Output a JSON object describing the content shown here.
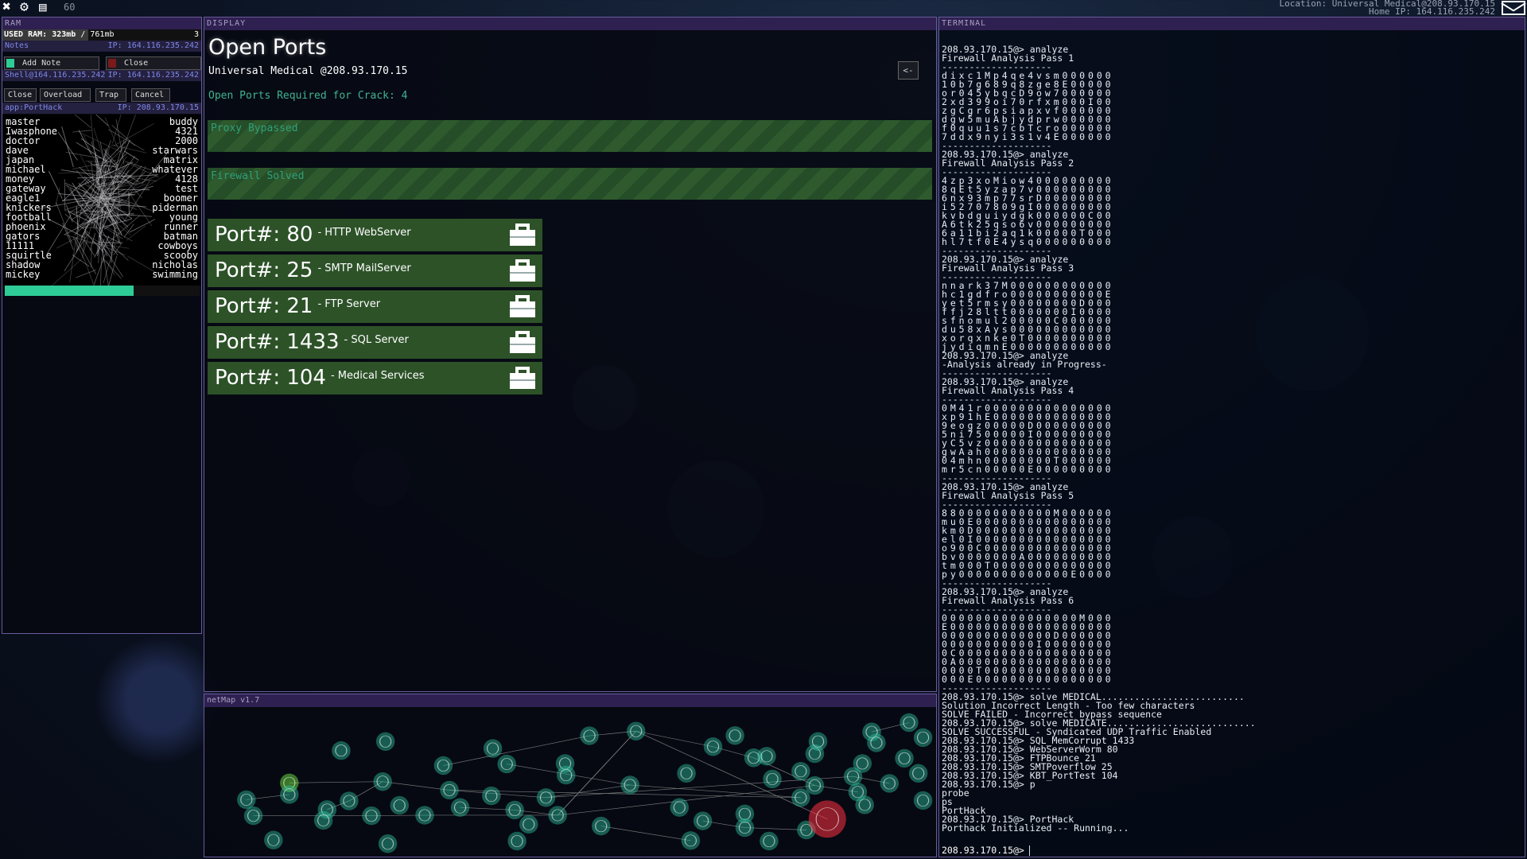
{
  "topbar": {
    "fps": "60",
    "location": "Location: Universal Medical@208.93.170.15",
    "home_ip": "Home IP: 164.116.235.242",
    "icons": [
      "close-icon",
      "gear-icon",
      "save-icon",
      "mail-icon"
    ]
  },
  "ram": {
    "header": "RAM",
    "used_label": "USED RAM: 323mb",
    "total": "/ 761mb",
    "process_count": "3"
  },
  "notes": {
    "title": "Notes",
    "ip": "IP: 164.116.235.242",
    "add_label": "Add Note",
    "close_label": "Close"
  },
  "shell": {
    "title": "Shell@164.116.235.242",
    "ip": "IP: 164.116.235.242",
    "buttons": [
      "Close",
      "Overload",
      "Trap",
      "Cancel"
    ]
  },
  "porthack": {
    "title": "app:PortHack",
    "ip": "IP: 208.93.170.15",
    "progress_percent": 66,
    "words_left": [
      "master",
      "Iwasphone",
      "doctor",
      "dave",
      "japan",
      "michael",
      "money",
      "gateway",
      "eagle1",
      "knickers",
      "football",
      "phoenix",
      "gators",
      "11111",
      "squirtle",
      "shadow",
      "mickey"
    ],
    "words_right": [
      "buddy",
      "4321",
      "2000",
      "starwars",
      "matrix",
      "whatever",
      "4128",
      "test",
      "boomer",
      "piderman",
      "young",
      "runner",
      "batman",
      "cowboys",
      "scooby",
      "nicholas",
      "swimming"
    ]
  },
  "display": {
    "header": "DISPLAY",
    "title": "Open Ports",
    "subtitle": "Universal Medical @208.93.170.15",
    "required": "Open Ports Required for Crack: 4",
    "back_label": "<-",
    "status": [
      "Proxy Bypassed",
      "Firewall Solved"
    ],
    "ports": [
      {
        "label": "Port#: 80",
        "desc": "- HTTP WebServer"
      },
      {
        "label": "Port#: 25",
        "desc": "- SMTP MailServer"
      },
      {
        "label": "Port#: 21",
        "desc": "- FTP Server"
      },
      {
        "label": "Port#: 1433",
        "desc": "- SQL Server"
      },
      {
        "label": "Port#: 104",
        "desc": "- Medical Services"
      }
    ]
  },
  "netmap": {
    "header": "netMap v1.7",
    "colors": {
      "node": "#2ec4a0",
      "player": "#7cff4a",
      "target": "#ff3040"
    }
  },
  "terminal": {
    "header": "TERMINAL",
    "prompt": "208.93.170.15@>",
    "lines": [
      "",
      "208.93.170.15@> analyze",
      "Firewall Analysis Pass 1",
      "--------------------",
      "dixc1Mp4qe4vsm000000",
      "10b7g689q8zge8E00000",
      "or045ybqcD9ow7000000",
      "2xd399oi70rfxm000I00",
      "zgCgr6psiapxvf000000",
      "dgw5muAbjydprw000000",
      "f0quu1s7cbTcro000000",
      "7ddx9nyi3s1v4E000000",
      "--------------------",
      "208.93.170.15@> analyze",
      "Firewall Analysis Pass 2",
      "--------------------",
      "4zp3xoMiow4000000000",
      "8qEt5yzap7v000000000",
      "6nx93mp77srD00000000",
      "i52707809gI000000000",
      "kvbdguiydgk000000C00",
      "A6tk25qso6v000000000",
      "6a11bi2aq1k00000T000",
      "hl7tf0E4ysq000000000",
      "--------------------",
      "208.93.170.15@> analyze",
      "Firewall Analysis Pass 3",
      "--------------------",
      "nnark37M000000000000",
      "hc1gdfro00000000000E",
      "yet5rmsy00000000D000",
      "ffj28ltt0000000I0000",
      "sfnomul200000C000000",
      "du58xAys000000000000",
      "xorqxnke0T0000000000",
      "jydiqmnE000000000000",
      "208.93.170.15@> analyze",
      "-Analysis already in Progress-",
      "--------------------",
      "208.93.170.15@> analyze",
      "Firewall Analysis Pass 4",
      "--------------------",
      "0M41r000000000000000",
      "xp91hE00000000000000",
      "9eogz00000D000000000",
      "5ni7500000I000000000",
      "yC5vz000000000000000",
      "gwAah000000000000000",
      "04mhn00000000T000000",
      "mr5cn00000E000000000",
      "--------------------",
      "208.93.170.15@> analyze",
      "Firewall Analysis Pass 5",
      "--------------------",
      "8800000000000M000000",
      "mu0E0000000000000000",
      "km0D0000000000000000",
      "el0I0000000000000000",
      "o900C000000000000000",
      "bv0000000A0000000000",
      "tm000T00000000000000",
      "py0000000000000E0000",
      "--------------------",
      "208.93.170.15@> analyze",
      "Firewall Analysis Pass 6",
      "--------------------",
      "0000000000000000M000",
      "E0000000000000000000",
      "0000000000000D000000",
      "00000000000I00000000",
      "0C000000000000000000",
      "0A000000000000000000",
      "0000T000000000000000",
      "000E0000000000000000",
      "--------------------",
      "208.93.170.15@> solve MEDICAL..........................",
      "Solution Incorrect Length - Too few characters",
      "SOLVE FAILED - Incorrect bypass sequence",
      "208.93.170.15@> solve MEDICATE...........................",
      "SOLVE SUCCESSFUL - Syndicated UDP Traffic Enabled",
      "208.93.170.15@> SQL_MemCorrupt 1433",
      "208.93.170.15@> WebServerWorm 80",
      "208.93.170.15@> FTPBounce 21",
      "208.93.170.15@> SMTPoverflow 25",
      "208.93.170.15@> KBT_PortTest 104",
      "208.93.170.15@> p",
      "probe",
      "ps",
      "PortHack",
      "208.93.170.15@> PortHack",
      "Porthack Initialized -- Running...",
      ""
    ]
  }
}
